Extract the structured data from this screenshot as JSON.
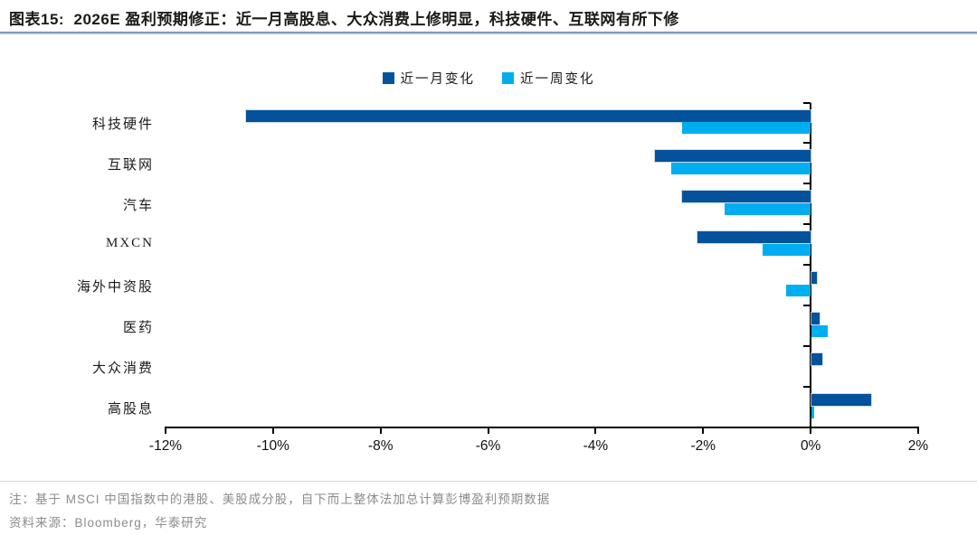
{
  "title": "图表15:  2026E 盈利预期修正：近一月高股息、大众消费上修明显，科技硬件、互联网有所下修",
  "legend": {
    "items": [
      {
        "label": "近一月变化",
        "color": "#04529C"
      },
      {
        "label": "近一周变化",
        "color": "#00AEEF"
      }
    ]
  },
  "chart_data": {
    "type": "bar",
    "orientation": "horizontal",
    "title": "2026E盈利预期修正",
    "categories": [
      "科技硬件",
      "互联网",
      "汽车",
      "MXCN",
      "海外中资股",
      "医药",
      "大众消费",
      "高股息"
    ],
    "series": [
      {
        "name": "近一月变化",
        "color": "#04529C",
        "values": [
          -10.5,
          -2.9,
          -2.4,
          -2.1,
          0.1,
          0.15,
          0.2,
          1.1
        ]
      },
      {
        "name": "近一周变化",
        "color": "#00AEEF",
        "values": [
          -2.4,
          -2.6,
          -1.6,
          -0.9,
          -0.45,
          0.3,
          0.0,
          0.05
        ]
      }
    ],
    "unit": "%",
    "xlim": [
      -12,
      2
    ],
    "xtick_step": 2,
    "xtick_labels": [
      "-12%",
      "-10%",
      "-8%",
      "-6%",
      "-4%",
      "-2%",
      "0%",
      "2%"
    ],
    "grid": false,
    "legend_position": "top-center"
  },
  "colors": {
    "month_bar": "#04529C",
    "week_bar": "#00AEEF",
    "axis": "#000000",
    "title_rule": "#5f80a8",
    "note_text": "#8c8c8c"
  },
  "footer": {
    "note": "注：基于 MSCI 中国指数中的港股、美股成分股，自下而上整体法加总计算彭博盈利预期数据",
    "source": "资料来源：Bloomberg，华泰研究"
  }
}
